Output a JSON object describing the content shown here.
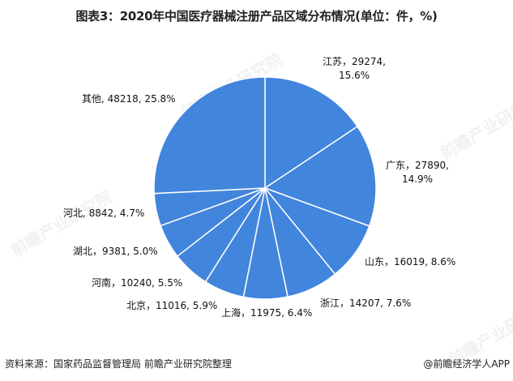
{
  "title": "图表3：2020年中国医疗器械注册产品区域分布情况(单位：件，%)",
  "chart_data": {
    "type": "pie",
    "title": "图表3：2020年中国医疗器械注册产品区域分布情况(单位：件，%)",
    "unit": "件，%",
    "start_angle": "12 o'clock",
    "direction": "clockwise",
    "slice_color": "#4285DC",
    "separator_color": "#FFFFFF",
    "legend": "none (data labels)",
    "categories": [
      "江苏",
      "广东",
      "山东",
      "浙江",
      "上海",
      "北京",
      "河南",
      "湖北",
      "河北",
      "其他"
    ],
    "values": [
      29274,
      27890,
      16019,
      14207,
      11975,
      11016,
      10240,
      9381,
      8842,
      48218
    ],
    "percents": [
      15.6,
      14.9,
      8.6,
      7.6,
      6.4,
      5.9,
      5.5,
      5.0,
      4.7,
      25.8
    ]
  },
  "labels": {
    "jiangsu_line1": "江苏，29274,",
    "jiangsu_line2": "15.6%",
    "guangdong_line1": "广东，27890,",
    "guangdong_line2": "14.9%",
    "shandong": "山东，16019, 8.6%",
    "zhejiang": "浙江，14207, 7.6%",
    "shanghai": "上海，11975, 6.4%",
    "beijing": "北京，11016, 5.9%",
    "henan": "河南，10240, 5.5%",
    "hubei": "湖北，9381, 5.0%",
    "hebei": "河北, 8842, 4.7%",
    "other": "其他, 48218, 25.8%"
  },
  "footer": {
    "source": "资料来源：国家药品监督管理局 前瞻产业研究院整理",
    "credit": "@前瞻经济学人APP"
  },
  "watermark": "前瞻产业研究院"
}
